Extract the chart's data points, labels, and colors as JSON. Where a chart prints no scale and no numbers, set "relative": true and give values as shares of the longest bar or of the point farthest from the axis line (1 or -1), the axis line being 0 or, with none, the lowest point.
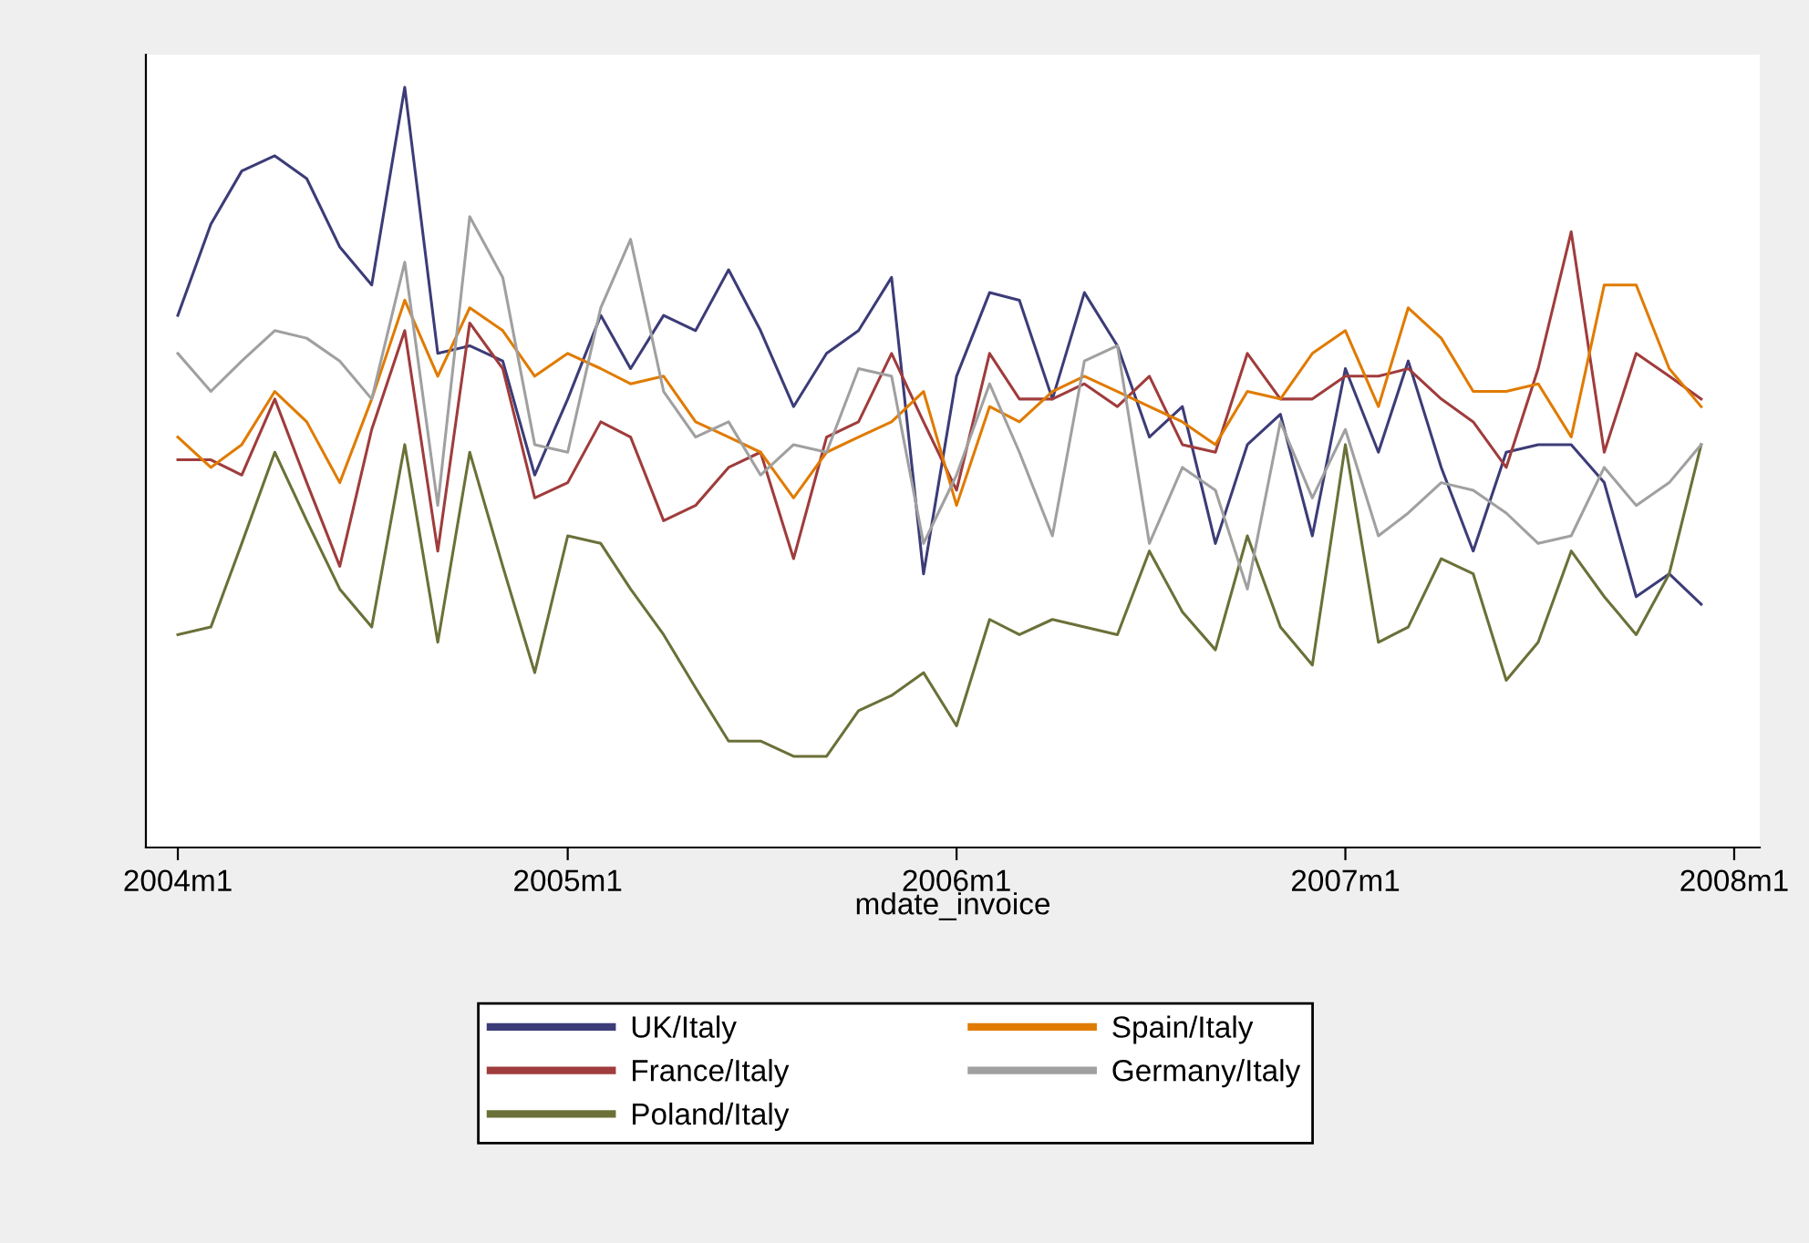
{
  "chart_data": {
    "type": "line",
    "relative": true,
    "xlabel": "mdate_invoice",
    "legend": "bottom",
    "line_style": "solid",
    "x": [
      "2004-01",
      "2004-02",
      "2004-03",
      "2004-04",
      "2004-05",
      "2004-06",
      "2004-07",
      "2004-08",
      "2004-09",
      "2004-10",
      "2004-11",
      "2004-12",
      "2005-01",
      "2005-02",
      "2005-03",
      "2005-04",
      "2005-05",
      "2005-06",
      "2005-07",
      "2005-08",
      "2005-09",
      "2005-10",
      "2005-11",
      "2005-12",
      "2006-01",
      "2006-02",
      "2006-03",
      "2006-04",
      "2006-05",
      "2006-06",
      "2006-07",
      "2006-08",
      "2006-09",
      "2006-10",
      "2006-11",
      "2006-12",
      "2007-01",
      "2007-02",
      "2007-03",
      "2007-04",
      "2007-05",
      "2007-06",
      "2007-07",
      "2007-08",
      "2007-09",
      "2007-10",
      "2007-11",
      "2007-12"
    ],
    "xlim": [
      "2003-12-02",
      "2008-01-25"
    ],
    "xticks": [
      {
        "value": "2004-01",
        "label": "2004m1"
      },
      {
        "value": "2005-01",
        "label": "2005m1"
      },
      {
        "value": "2006-01",
        "label": "2006m1"
      },
      {
        "value": "2007-01",
        "label": "2007m1"
      },
      {
        "value": "2008-01",
        "label": "2008m1"
      }
    ],
    "series": [
      {
        "name": "UK/Italy",
        "color": "#3c3c78",
        "values": [
          0.7,
          0.82,
          0.89,
          0.91,
          0.88,
          0.79,
          0.74,
          1,
          0.65,
          0.66,
          0.64,
          0.49,
          0.59,
          0.7,
          0.63,
          0.7,
          0.68,
          0.76,
          0.68,
          0.58,
          0.65,
          0.68,
          0.75,
          0.36,
          0.62,
          0.73,
          0.72,
          0.59,
          0.73,
          0.66,
          0.54,
          0.58,
          0.4,
          0.53,
          0.57,
          0.41,
          0.63,
          0.52,
          0.64,
          0.5,
          0.39,
          0.52,
          0.53,
          0.53,
          0.48,
          0.33,
          0.36,
          0.32
        ]
      },
      {
        "name": "France/Italy",
        "color": "#a03c3c",
        "values": [
          0.51,
          0.51,
          0.49,
          0.59,
          0.48,
          0.37,
          0.55,
          0.68,
          0.39,
          0.69,
          0.63,
          0.46,
          0.48,
          0.56,
          0.54,
          0.43,
          0.45,
          0.5,
          0.52,
          0.38,
          0.54,
          0.56,
          0.65,
          0.56,
          0.47,
          0.65,
          0.59,
          0.59,
          0.61,
          0.58,
          0.62,
          0.53,
          0.52,
          0.65,
          0.59,
          0.59,
          0.62,
          0.62,
          0.63,
          0.59,
          0.56,
          0.5,
          0.63,
          0.81,
          0.52,
          0.65,
          0.62,
          0.59
        ]
      },
      {
        "name": "Poland/Italy",
        "color": "#6b7038",
        "values": [
          0.28,
          0.29,
          0.4,
          0.52,
          0.43,
          0.34,
          0.29,
          0.53,
          0.27,
          0.52,
          0.37,
          0.23,
          0.41,
          0.4,
          0.34,
          0.28,
          0.21,
          0.14,
          0.14,
          0.12,
          0.12,
          0.18,
          0.2,
          0.23,
          0.16,
          0.3,
          0.28,
          0.3,
          0.29,
          0.28,
          0.39,
          0.31,
          0.26,
          0.41,
          0.29,
          0.24,
          0.53,
          0.27,
          0.29,
          0.38,
          0.36,
          0.22,
          0.27,
          0.39,
          0.33,
          0.28,
          0.36,
          0.53
        ]
      },
      {
        "name": "Spain/Italy",
        "color": "#e07b00",
        "values": [
          0.54,
          0.5,
          0.53,
          0.6,
          0.56,
          0.48,
          0.59,
          0.72,
          0.62,
          0.71,
          0.68,
          0.62,
          0.65,
          0.63,
          0.61,
          0.62,
          0.56,
          0.54,
          0.52,
          0.46,
          0.52,
          0.54,
          0.56,
          0.6,
          0.45,
          0.58,
          0.56,
          0.6,
          0.62,
          0.6,
          0.58,
          0.56,
          0.53,
          0.6,
          0.59,
          0.65,
          0.68,
          0.58,
          0.71,
          0.67,
          0.6,
          0.6,
          0.61,
          0.54,
          0.74,
          0.74,
          0.63,
          0.58
        ]
      },
      {
        "name": "Germany/Italy",
        "color": "#a0a0a0",
        "values": [
          0.65,
          0.6,
          0.64,
          0.68,
          0.67,
          0.64,
          0.59,
          0.77,
          0.45,
          0.83,
          0.75,
          0.53,
          0.52,
          0.71,
          0.8,
          0.6,
          0.54,
          0.56,
          0.49,
          0.53,
          0.52,
          0.63,
          0.62,
          0.4,
          0.49,
          0.61,
          0.52,
          0.41,
          0.64,
          0.66,
          0.4,
          0.5,
          0.47,
          0.34,
          0.56,
          0.46,
          0.55,
          0.41,
          0.44,
          0.48,
          0.47,
          0.44,
          0.4,
          0.41,
          0.5,
          0.45,
          0.48,
          0.53
        ]
      }
    ]
  }
}
